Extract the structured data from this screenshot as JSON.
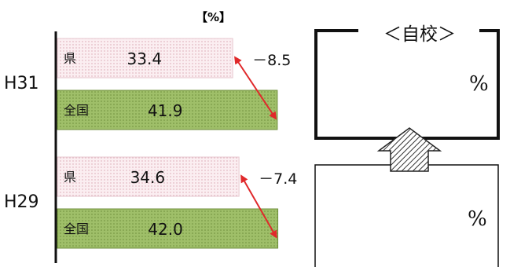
{
  "chart_data": {
    "type": "bar",
    "orientation": "horizontal",
    "unit_label": "【%】",
    "categories": [
      "H31",
      "H29"
    ],
    "series": [
      {
        "name": "県",
        "values": [
          33.4,
          34.6
        ],
        "color": "#f8e6ea"
      },
      {
        "name": "全国",
        "values": [
          41.9,
          42.0
        ],
        "color": "#9bbb66"
      }
    ],
    "differences": [
      {
        "category": "H31",
        "label": "－8.5"
      },
      {
        "category": "H29",
        "label": "－7.4"
      }
    ],
    "value_labels": [
      [
        "33.4",
        "41.9"
      ],
      [
        "34.6",
        "42.0"
      ]
    ],
    "grid": false,
    "legend": "none",
    "arrow_color": "#e0292b"
  },
  "school": {
    "title": "＜自校＞",
    "upper_unit": "%",
    "lower_unit": "%"
  }
}
